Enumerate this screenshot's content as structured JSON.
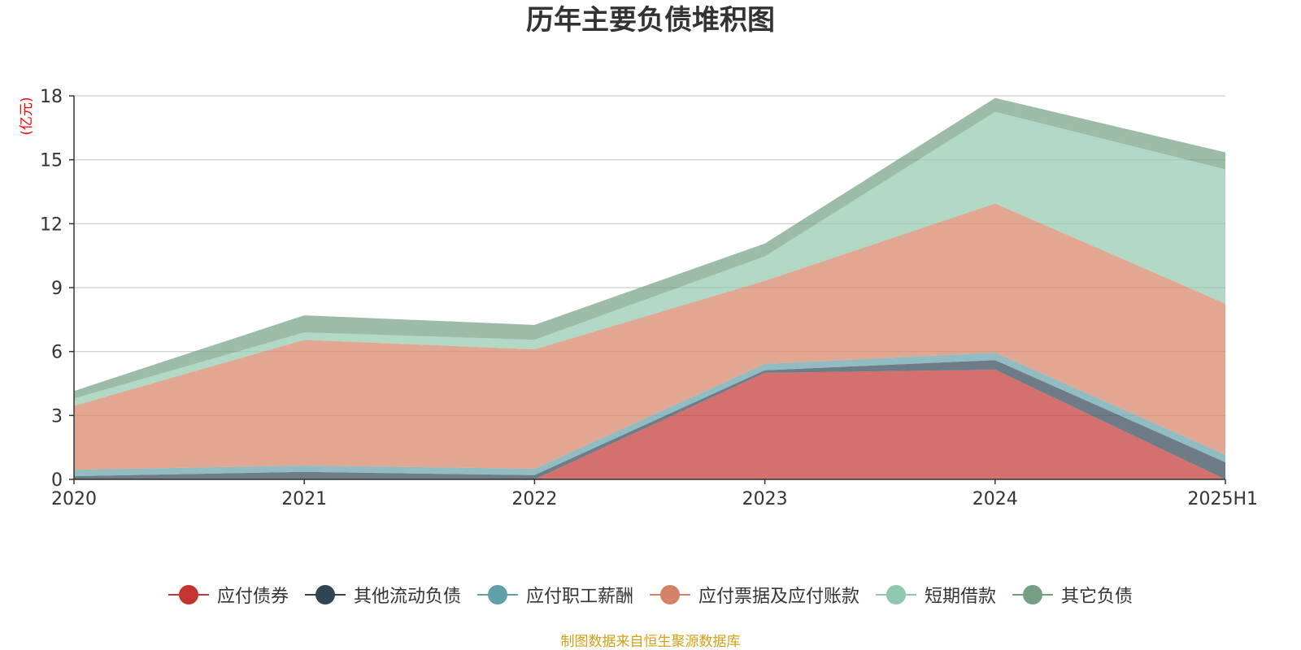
{
  "chart_data": {
    "type": "area",
    "stacked": true,
    "title": "历年主要负债堆积图",
    "ylabel": "亿元",
    "xlabel": "",
    "categories": [
      "2020",
      "2021",
      "2022",
      "2023",
      "2024",
      "2025H1"
    ],
    "ylim": [
      0,
      18
    ],
    "yticks": [
      "0",
      "3",
      "6",
      "9",
      "12",
      "15",
      "18"
    ],
    "grid": true,
    "legend_position": "bottom",
    "series": [
      {
        "name": "应付债券",
        "color": "#c23531",
        "values": [
          0,
          0,
          0,
          5.0,
          5.15,
          0
        ]
      },
      {
        "name": "其他流动负债",
        "color": "#2f4554",
        "values": [
          0.15,
          0.35,
          0.2,
          0.12,
          0.45,
          0.8
        ]
      },
      {
        "name": "应付职工薪酬",
        "color": "#61a0a8",
        "values": [
          0.3,
          0.3,
          0.3,
          0.3,
          0.35,
          0.35
        ]
      },
      {
        "name": "应付票据及应付账款",
        "color": "#d48265",
        "values": [
          3.0,
          5.9,
          5.6,
          3.9,
          7.0,
          7.1
        ]
      },
      {
        "name": "短期借款",
        "color": "#91c7ae",
        "values": [
          0.35,
          0.35,
          0.45,
          1.15,
          4.3,
          6.3
        ]
      },
      {
        "name": "其它负债",
        "color": "#749f83",
        "values": [
          0.35,
          0.8,
          0.7,
          0.6,
          0.65,
          0.8
        ]
      }
    ]
  },
  "source_note": "制图数据来自恒生聚源数据库"
}
